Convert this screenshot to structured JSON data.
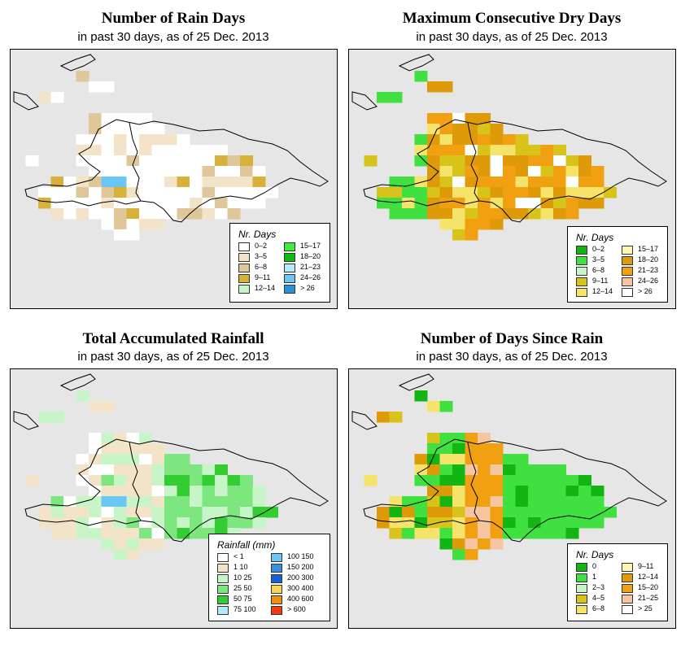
{
  "panels": [
    {
      "title": "Number of Rain Days",
      "subtitle": "in past 30 days, as of  25 Dec. 2013",
      "legend": {
        "title": "Nr. Days",
        "items": [
          {
            "label": "0–2",
            "color": "#ffffff"
          },
          {
            "label": "3–5",
            "color": "#f3e3c8"
          },
          {
            "label": "6–8",
            "color": "#e0c79a"
          },
          {
            "label": "9–11",
            "color": "#d7b13a"
          },
          {
            "label": "12–14",
            "color": "#c7f5c7"
          },
          {
            "label": "15–17",
            "color": "#3bf03b"
          },
          {
            "label": "18–20",
            "color": "#0dbb0d"
          },
          {
            "label": "21–23",
            "color": "#b3ecf8"
          },
          {
            "label": "24–26",
            "color": "#6ac6f2"
          },
          {
            "label": "> 26",
            "color": "#2a8fd6"
          }
        ]
      }
    },
    {
      "title": "Maximum Consecutive Dry Days",
      "subtitle": "in past 30 days, as of  25 Dec. 2013",
      "legend": {
        "title": "Nr. Days",
        "items": [
          {
            "label": "0–2",
            "color": "#12b512"
          },
          {
            "label": "3–5",
            "color": "#3fe03f"
          },
          {
            "label": "6–8",
            "color": "#c7f5c7"
          },
          {
            "label": "9–11",
            "color": "#d7c31a"
          },
          {
            "label": "12–14",
            "color": "#f5e36a"
          },
          {
            "label": "15–17",
            "color": "#fff5b3"
          },
          {
            "label": "18–20",
            "color": "#df9a0a"
          },
          {
            "label": "21–23",
            "color": "#f0a010"
          },
          {
            "label": "24–26",
            "color": "#f7c6a0"
          },
          {
            "label": "> 26",
            "color": "#ffffff"
          }
        ]
      }
    },
    {
      "title": "Total Accumulated Rainfall",
      "subtitle": "in past 30 days, as of  25 Dec. 2013",
      "legend": {
        "title": "Rainfall (mm)",
        "items": [
          {
            "label": "< 1",
            "color": "#ffffff"
          },
          {
            "label": "1   10",
            "color": "#f3e3c8"
          },
          {
            "label": "10   25",
            "color": "#c7f5c7"
          },
          {
            "label": "25   50",
            "color": "#7ee67e"
          },
          {
            "label": "50   75",
            "color": "#33cc33"
          },
          {
            "label": "75   100",
            "color": "#b3ecf8"
          },
          {
            "label": "100   150",
            "color": "#6ac6f2"
          },
          {
            "label": "150   200",
            "color": "#3a8ee6"
          },
          {
            "label": "200   300",
            "color": "#1a5fd6"
          },
          {
            "label": "300   400",
            "color": "#f5d65a"
          },
          {
            "label": "400   600",
            "color": "#f09010"
          },
          {
            "label": "> 600",
            "color": "#f03a10"
          }
        ]
      }
    },
    {
      "title": "Number of Days Since Rain",
      "subtitle": "in past 30 days, as of  25 Dec. 2013",
      "legend": {
        "title": "Nr. Days",
        "items": [
          {
            "label": "0",
            "color": "#12b512"
          },
          {
            "label": "1",
            "color": "#3fe03f"
          },
          {
            "label": "2–3",
            "color": "#c7f5c7"
          },
          {
            "label": "4–5",
            "color": "#d7c31a"
          },
          {
            "label": "6–8",
            "color": "#f5e36a"
          },
          {
            "label": "9–11",
            "color": "#fff5b3"
          },
          {
            "label": "12–14",
            "color": "#df9a0a"
          },
          {
            "label": "15–20",
            "color": "#f0a010"
          },
          {
            "label": "21–25",
            "color": "#f7c6a0"
          },
          {
            "label": "> 25",
            "color": "#ffffff"
          }
        ]
      }
    }
  ]
}
